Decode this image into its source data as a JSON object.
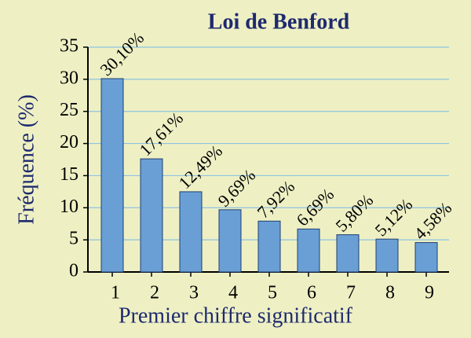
{
  "chart_data": {
    "type": "bar",
    "title": "Loi de Benford",
    "x_label": "Premier chiffre significatif",
    "y_label": "Fréquence (%)",
    "categories": [
      "1",
      "2",
      "3",
      "4",
      "5",
      "6",
      "7",
      "8",
      "9"
    ],
    "values": [
      30.1,
      17.61,
      12.49,
      9.69,
      7.92,
      6.69,
      5.8,
      5.12,
      4.58
    ],
    "value_labels": [
      "30,10%",
      "17,61%",
      "12,49%",
      "9,69%",
      "7,92%",
      "6,69%",
      "5,80%",
      "5,12%",
      "4,58%"
    ],
    "color": "#6a9fd6",
    "ylim": [
      0,
      35
    ],
    "yticks": [
      0,
      5,
      10,
      15,
      20,
      25,
      30,
      35
    ],
    "grid": true
  }
}
